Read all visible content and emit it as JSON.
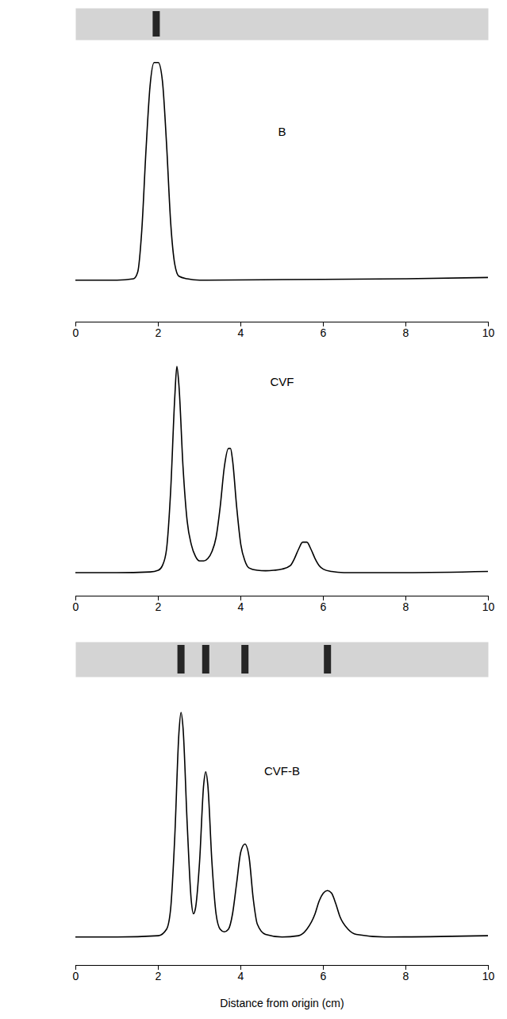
{
  "chart_data": [
    {
      "type": "line",
      "title": "B",
      "color": "#000000",
      "gel_bands": [
        1.95
      ],
      "x": [
        0,
        1,
        1.4,
        1.5,
        1.6,
        1.7,
        1.8,
        1.9,
        2.0,
        2.1,
        2.2,
        2.3,
        2.4,
        2.5,
        2.7,
        3,
        5,
        8,
        10
      ],
      "values": [
        16,
        16,
        16.5,
        19,
        35,
        65,
        90,
        99,
        99,
        92,
        68,
        38,
        22,
        17.5,
        16.5,
        16,
        16.2,
        16.5,
        17
      ],
      "xlim": [
        0,
        10
      ],
      "xticks": [
        0,
        2,
        4,
        6,
        8,
        10
      ],
      "ylim": [
        0,
        100
      ],
      "tick_labels": "x"
    },
    {
      "type": "line",
      "title": "CVF",
      "color": "#000000",
      "x": [
        0,
        1,
        1.8,
        2.0,
        2.1,
        2.2,
        2.3,
        2.4,
        2.45,
        2.5,
        2.6,
        2.7,
        2.8,
        2.9,
        3.0,
        3.1,
        3.2,
        3.3,
        3.4,
        3.5,
        3.6,
        3.7,
        3.75,
        3.8,
        3.9,
        4.0,
        4.1,
        4.2,
        4.4,
        4.6,
        4.8,
        5.0,
        5.2,
        5.3,
        5.4,
        5.5,
        5.6,
        5.7,
        5.8,
        5.9,
        6.0,
        6.2,
        6.5,
        8,
        10
      ],
      "values": [
        10,
        10,
        10.3,
        11,
        13,
        20,
        45,
        85,
        98,
        90,
        55,
        32,
        22,
        17,
        15,
        15,
        16,
        19,
        25,
        38,
        55,
        63,
        63,
        58,
        38,
        22,
        15,
        12,
        11,
        10.8,
        11,
        11.5,
        13,
        16,
        20,
        23,
        23,
        20,
        16,
        13,
        11.5,
        10.5,
        10,
        10,
        10.5
      ],
      "xlim": [
        0,
        10
      ],
      "xticks": [
        0,
        2,
        4,
        6,
        8,
        10
      ],
      "ylim": [
        0,
        100
      ],
      "tick_labels": "x"
    },
    {
      "type": "line",
      "title": "CVF-B",
      "color": "#000000",
      "xlabel": "Distance from origin (cm)",
      "gel_bands": [
        2.55,
        3.15,
        4.1,
        6.1
      ],
      "x": [
        0,
        1,
        2.0,
        2.2,
        2.3,
        2.4,
        2.5,
        2.55,
        2.6,
        2.7,
        2.8,
        2.85,
        2.9,
        3.0,
        3.1,
        3.15,
        3.2,
        3.3,
        3.4,
        3.5,
        3.6,
        3.7,
        3.8,
        3.9,
        4.0,
        4.1,
        4.2,
        4.3,
        4.4,
        4.6,
        5.0,
        5.4,
        5.6,
        5.8,
        5.9,
        6.0,
        6.1,
        6.2,
        6.3,
        6.4,
        6.6,
        6.8,
        7.5,
        10
      ],
      "values": [
        11,
        11,
        11.5,
        14,
        22,
        50,
        90,
        98,
        92,
        55,
        25,
        20,
        22,
        40,
        70,
        75,
        70,
        40,
        20,
        14,
        13,
        14,
        20,
        32,
        44,
        47,
        42,
        26,
        16,
        12,
        11,
        11.5,
        14,
        20,
        25,
        28,
        29,
        28,
        24,
        19,
        14,
        12,
        11,
        11.5
      ],
      "xlim": [
        0,
        10
      ],
      "xticks": [
        0,
        2,
        4,
        6,
        8,
        10
      ],
      "ylim": [
        0,
        100
      ],
      "tick_labels": "x"
    }
  ]
}
